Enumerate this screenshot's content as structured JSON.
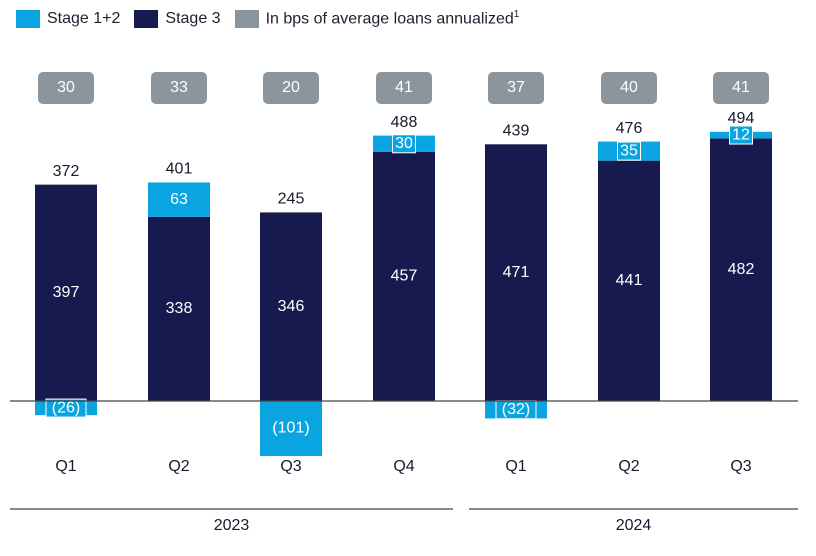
{
  "legend": {
    "stage12": "Stage 1+2",
    "stage3": "Stage 3",
    "bps": "In bps of average loans annualized",
    "bps_footnote": "1"
  },
  "colors": {
    "stage12": "#0aa4e0",
    "stage3": "#161a4f",
    "bps_badge": "#8a959e",
    "axis": "#444444"
  },
  "chart_data": {
    "type": "bar",
    "stacked": true,
    "categories": [
      "Q1",
      "Q2",
      "Q3",
      "Q4",
      "Q1",
      "Q2",
      "Q3"
    ],
    "groups": [
      {
        "label": "2023",
        "categories": [
          0,
          1,
          2,
          3
        ]
      },
      {
        "label": "2024",
        "categories": [
          4,
          5,
          6
        ]
      }
    ],
    "series": [
      {
        "name": "Stage 3",
        "values": [
          397,
          338,
          346,
          457,
          471,
          441,
          482
        ],
        "labels": [
          "397",
          "338",
          "346",
          "457",
          "471",
          "441",
          "482"
        ]
      },
      {
        "name": "Stage 1+2",
        "values": [
          -26,
          63,
          -101,
          30,
          -32,
          35,
          12
        ],
        "labels": [
          "(26)",
          "63",
          "(101)",
          "30",
          "(32)",
          "35",
          "12"
        ]
      }
    ],
    "totals": [
      372,
      401,
      245,
      488,
      439,
      476,
      494
    ],
    "bps": [
      30,
      33,
      20,
      41,
      37,
      40,
      41
    ],
    "bps_label": "In bps of average loans annualized",
    "ylim": [
      -110,
      500
    ]
  }
}
